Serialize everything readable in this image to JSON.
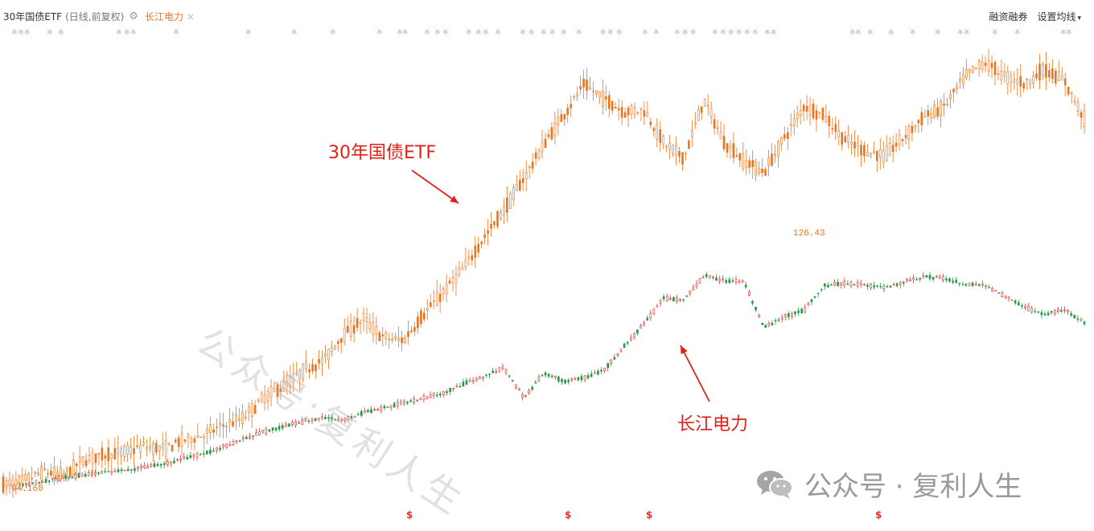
{
  "header": {
    "symbol": "30年国债ETF",
    "sub": "(日线,前复权)",
    "compare": "长江电力",
    "close_glyph": "×",
    "gear_glyph": "⚙",
    "right_links": [
      "融资融券",
      "设置均线"
    ]
  },
  "annotations": {
    "etf_label": "30年国债ETF",
    "cjdl_label": "长江电力"
  },
  "watermarks": {
    "diagonal": "公众号:复利人生",
    "bottom": "公众号 · 复利人生"
  },
  "price_labels": {
    "low": "94.160",
    "high": "126.43"
  },
  "bottom_marker": "$",
  "colors": {
    "up": "#e8741e",
    "down": "#e8741e",
    "cjdl_up": "#e0332f",
    "cjdl_down": "#1e9b3c",
    "annotation": "#e0201a"
  },
  "chart_data": {
    "type": "line",
    "title": "",
    "xlabel": "",
    "ylabel": "",
    "ylim": [
      92,
      130
    ],
    "series": [
      {
        "name": "30年国债ETF",
        "values": [
          94.2,
          94.5,
          95.3,
          95.0,
          96.2,
          96.6,
          96.8,
          97.3,
          97.1,
          97.8,
          98.2,
          99.0,
          99.6,
          101.2,
          102.1,
          103.4,
          104.2,
          106.3,
          107.5,
          106.0,
          105.8,
          107.9,
          109.7,
          111.6,
          114.0,
          116.2,
          118.8,
          121.5,
          123.9,
          126.3,
          125.2,
          124.1,
          124.3,
          121.6,
          120.4,
          125.1,
          121.7,
          120.2,
          119.3,
          122.0,
          124.6,
          123.8,
          121.9,
          121.0,
          120.6,
          122.1,
          123.7,
          124.5,
          126.9,
          128.1,
          127.0,
          126.4,
          127.5,
          126.6,
          123.6
        ]
      },
      {
        "name": "长江电力",
        "values": [
          94.2,
          94.3,
          94.5,
          94.8,
          95.0,
          95.2,
          95.4,
          95.6,
          95.9,
          96.3,
          96.7,
          97.3,
          97.9,
          98.5,
          98.9,
          99.3,
          99.6,
          99.4,
          100.0,
          100.4,
          100.8,
          101.2,
          101.6,
          102.3,
          102.9,
          103.6,
          101.2,
          103.2,
          102.5,
          102.8,
          103.4,
          105.3,
          107.1,
          109.2,
          109.0,
          111.0,
          110.6,
          110.5,
          106.8,
          107.7,
          108.2,
          110.2,
          110.4,
          110.3,
          110.0,
          110.5,
          110.9,
          110.8,
          110.3,
          110.2,
          109.4,
          108.5,
          107.9,
          108.3,
          107.2
        ]
      }
    ]
  }
}
